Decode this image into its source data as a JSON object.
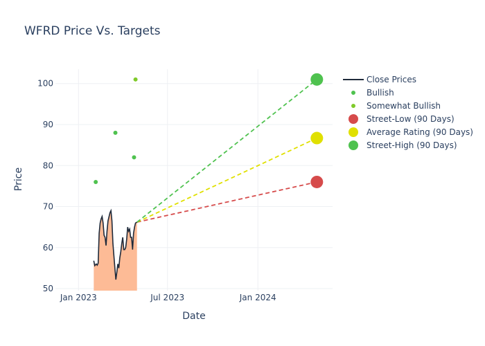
{
  "chart_data": {
    "type": "line",
    "title": "WFRD Price Vs. Targets",
    "xlabel": "Date",
    "ylabel": "Price",
    "xlim": [
      "2022-11-15",
      "2024-06-01"
    ],
    "ylim": [
      49.5,
      103.5
    ],
    "x_ticks": [
      {
        "date": "2023-01-01",
        "label": "Jan 2023"
      },
      {
        "date": "2023-07-01",
        "label": "Jul 2023"
      },
      {
        "date": "2024-01-01",
        "label": "Jan 2024"
      }
    ],
    "y_ticks": [
      50,
      60,
      70,
      80,
      90,
      100
    ],
    "grid": true,
    "legend_position": "right",
    "close_prices": [
      [
        "2023-02-01",
        56.8
      ],
      [
        "2023-02-03",
        55.6
      ],
      [
        "2023-02-06",
        56.0
      ],
      [
        "2023-02-08",
        55.7
      ],
      [
        "2023-02-10",
        56.2
      ],
      [
        "2023-02-12",
        63.5
      ],
      [
        "2023-02-14",
        66.0
      ],
      [
        "2023-02-16",
        67.0
      ],
      [
        "2023-02-18",
        67.6
      ],
      [
        "2023-02-20",
        66.0
      ],
      [
        "2023-02-22",
        63.0
      ],
      [
        "2023-02-24",
        62.5
      ],
      [
        "2023-02-26",
        60.5
      ],
      [
        "2023-02-28",
        64.0
      ],
      [
        "2023-03-02",
        66.5
      ],
      [
        "2023-03-04",
        67.5
      ],
      [
        "2023-03-06",
        68.5
      ],
      [
        "2023-03-08",
        69.0
      ],
      [
        "2023-03-10",
        66.5
      ],
      [
        "2023-03-12",
        61.0
      ],
      [
        "2023-03-14",
        58.0
      ],
      [
        "2023-03-16",
        55.0
      ],
      [
        "2023-03-18",
        52.2
      ],
      [
        "2023-03-20",
        54.0
      ],
      [
        "2023-03-22",
        56.0
      ],
      [
        "2023-03-24",
        55.0
      ],
      [
        "2023-03-26",
        57.5
      ],
      [
        "2023-03-28",
        59.0
      ],
      [
        "2023-03-30",
        61.0
      ],
      [
        "2023-04-01",
        62.5
      ],
      [
        "2023-04-03",
        59.5
      ],
      [
        "2023-04-05",
        59.5
      ],
      [
        "2023-04-07",
        60.0
      ],
      [
        "2023-04-09",
        62.0
      ],
      [
        "2023-04-11",
        65.0
      ],
      [
        "2023-04-13",
        64.0
      ],
      [
        "2023-04-15",
        64.5
      ],
      [
        "2023-04-17",
        62.5
      ],
      [
        "2023-04-19",
        62.5
      ],
      [
        "2023-04-21",
        59.5
      ],
      [
        "2023-04-23",
        63.5
      ],
      [
        "2023-04-25",
        65.0
      ],
      [
        "2023-04-27",
        66.0
      ],
      [
        "2023-04-30",
        66.2
      ]
    ],
    "series": [
      {
        "name": "Close Prices",
        "color": "#1f2a3a"
      },
      {
        "name": "Bullish",
        "color": "#4fc24f",
        "points": [
          [
            "2023-02-05",
            76
          ],
          [
            "2023-03-17",
            88
          ],
          [
            "2023-04-24",
            82
          ]
        ]
      },
      {
        "name": "Somewhat Bullish",
        "color": "#7fca2a",
        "points": [
          [
            "2023-04-27",
            101
          ]
        ]
      },
      {
        "name": "Street-Low (90 Days)",
        "color": "#d64b4b",
        "target_date": "2024-04-30",
        "value": 76
      },
      {
        "name": "Average Rating (90 Days)",
        "color": "#e0e000",
        "target_date": "2024-04-30",
        "value": 86.7
      },
      {
        "name": "Street-High (90 Days)",
        "color": "#4fc24f",
        "target_date": "2024-04-30",
        "value": 101
      }
    ],
    "fill_color": "#fdbb96",
    "line_color": "#1f2a3a",
    "start_point": [
      "2023-04-30",
      66.2
    ]
  }
}
